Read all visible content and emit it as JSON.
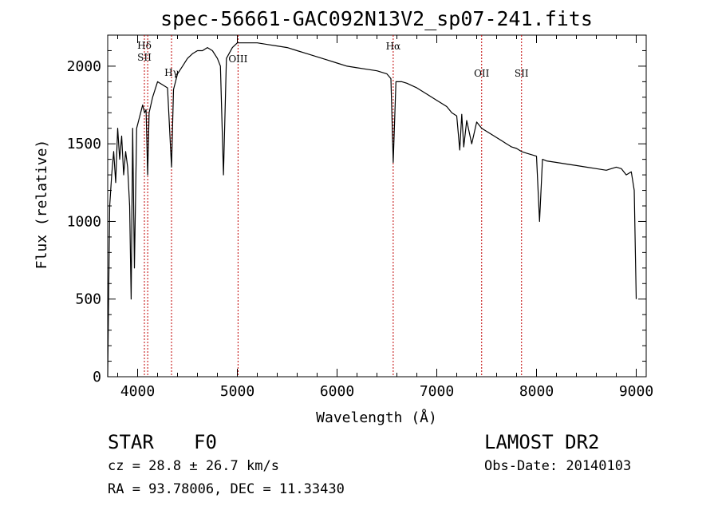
{
  "chart_data": {
    "type": "line",
    "title": "spec-56661-GAC092N13V2_sp07-241.fits",
    "xlabel": "Wavelength (Å)",
    "ylabel": "Flux (relative)",
    "xlim": [
      3700,
      9100
    ],
    "ylim": [
      0,
      2200
    ],
    "xticks": [
      4000,
      5000,
      6000,
      7000,
      8000,
      9000
    ],
    "yticks": [
      0,
      500,
      1000,
      1500,
      2000
    ],
    "grid": false,
    "series": [
      {
        "x": [
          3700,
          3720,
          3740,
          3760,
          3780,
          3800,
          3820,
          3840,
          3860,
          3880,
          3900,
          3920,
          3935,
          3950,
          3968,
          3990,
          4010,
          4030,
          4050,
          4070,
          4085,
          4101,
          4115,
          4150,
          4200,
          4250,
          4300,
          4340,
          4360,
          4400,
          4450,
          4500,
          4550,
          4600,
          4650,
          4700,
          4750,
          4800,
          4830,
          4861,
          4890,
          4950,
          5000,
          5100,
          5200,
          5300,
          5400,
          5500,
          5600,
          5700,
          5800,
          5900,
          6000,
          6100,
          6200,
          6300,
          6400,
          6500,
          6540,
          6563,
          6590,
          6650,
          6700,
          6800,
          6900,
          7000,
          7100,
          7150,
          7200,
          7230,
          7250,
          7270,
          7300,
          7350,
          7400,
          7450,
          7500,
          7550,
          7600,
          7650,
          7700,
          7750,
          7800,
          7850,
          7900,
          7950,
          8000,
          8030,
          8060,
          8100,
          8200,
          8300,
          8400,
          8500,
          8600,
          8700,
          8800,
          8850,
          8900,
          8950,
          8980,
          9000
        ],
        "y": [
          0,
          1100,
          1300,
          1450,
          1250,
          1600,
          1400,
          1550,
          1300,
          1450,
          1350,
          1100,
          500,
          1600,
          700,
          1600,
          1650,
          1700,
          1750,
          1700,
          1720,
          1300,
          1700,
          1800,
          1900,
          1880,
          1860,
          1350,
          1850,
          1950,
          2000,
          2050,
          2080,
          2100,
          2100,
          2120,
          2100,
          2050,
          2000,
          1300,
          2050,
          2120,
          2150,
          2150,
          2150,
          2140,
          2130,
          2120,
          2100,
          2080,
          2060,
          2040,
          2020,
          2000,
          1990,
          1980,
          1970,
          1950,
          1920,
          1380,
          1900,
          1900,
          1890,
          1860,
          1820,
          1780,
          1740,
          1700,
          1680,
          1460,
          1690,
          1480,
          1650,
          1500,
          1640,
          1600,
          1580,
          1560,
          1540,
          1520,
          1500,
          1480,
          1470,
          1450,
          1440,
          1430,
          1420,
          1000,
          1400,
          1390,
          1380,
          1370,
          1360,
          1350,
          1340,
          1330,
          1350,
          1340,
          1300,
          1320,
          1200,
          500
        ]
      }
    ],
    "lines": [
      {
        "x": 4068,
        "labels": [
          "Hδ",
          "SII"
        ]
      },
      {
        "x": 4101,
        "labels": []
      },
      {
        "x": 4340,
        "labels": [
          "Hγ"
        ]
      },
      {
        "x": 5007,
        "labels": [
          "OIII"
        ]
      },
      {
        "x": 6563,
        "labels": [
          "Hα"
        ]
      },
      {
        "x": 7450,
        "labels": [
          "OII"
        ]
      },
      {
        "x": 7850,
        "labels": [
          "SII"
        ]
      }
    ]
  },
  "info": {
    "class": "STAR",
    "subclass": "F0",
    "cz": "cz = 28.8 ± 26.7 km/s",
    "coords": "RA =  93.78006, DEC =  11.33430",
    "survey": "LAMOST DR2",
    "obsdate": "Obs-Date: 20140103"
  }
}
